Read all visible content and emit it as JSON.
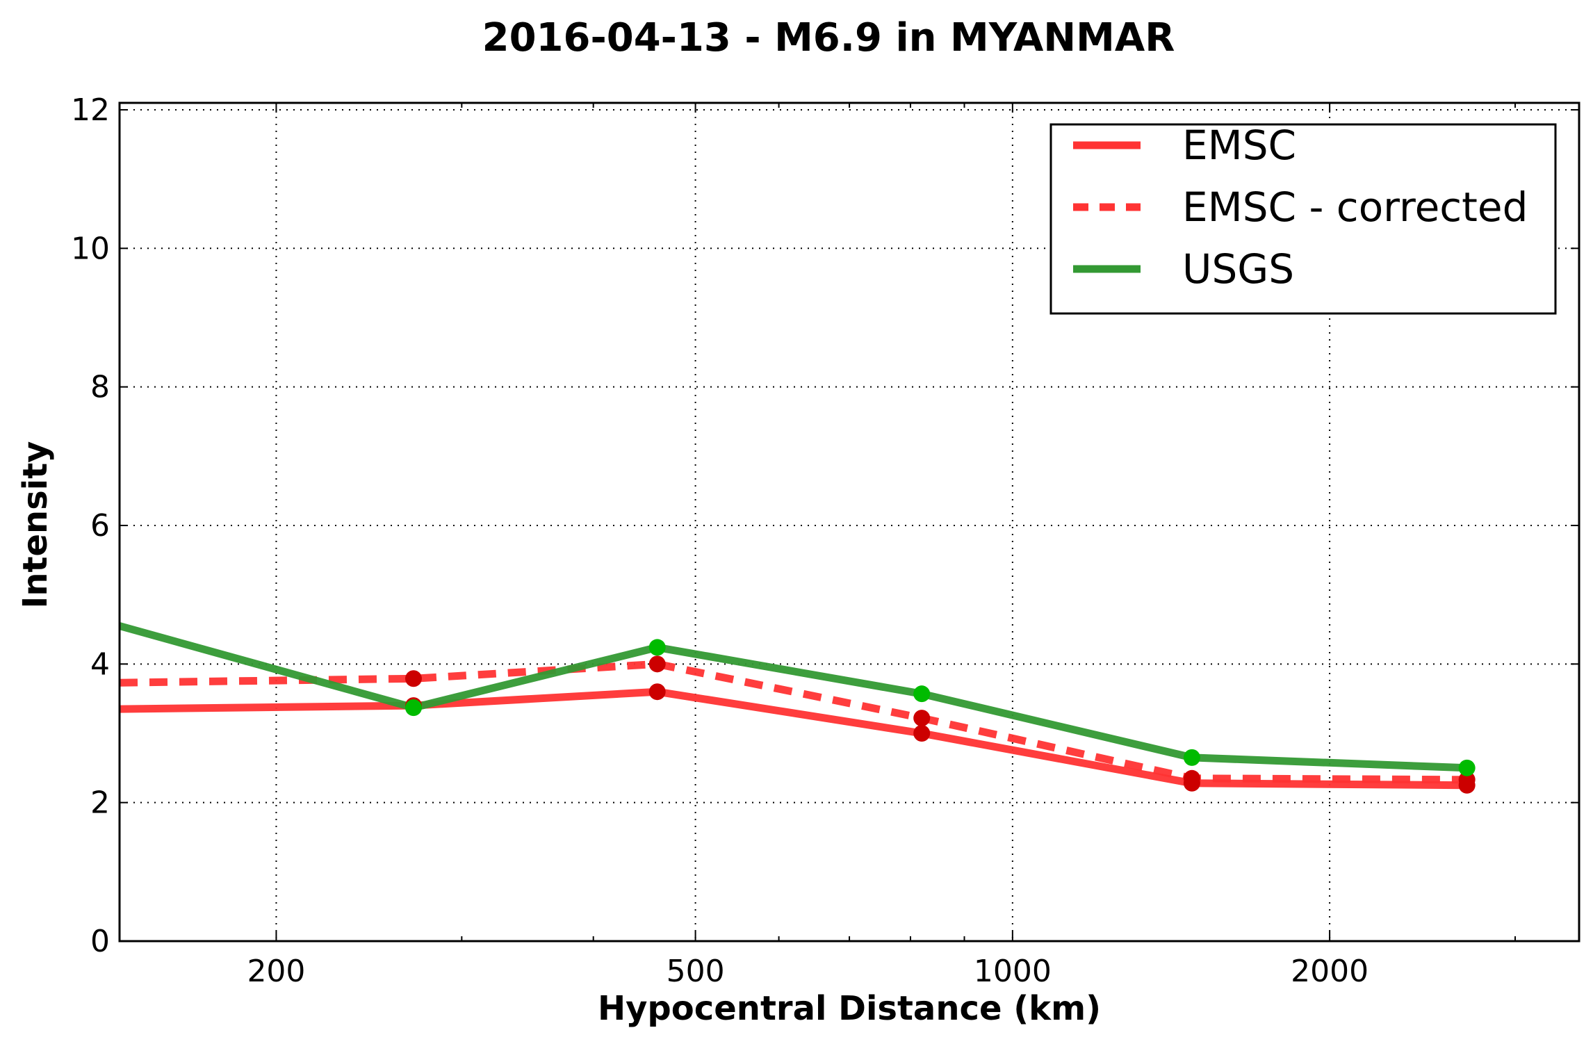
{
  "chart_data": {
    "type": "line",
    "title": "2016-04-13 - M6.9 in MYANMAR",
    "xlabel": "Hypocentral Distance (km)",
    "ylabel": "Intensity",
    "xscale": "log",
    "xlim": [
      142,
      3450
    ],
    "ylim": [
      0,
      12.1
    ],
    "xticks": [
      200,
      500,
      1000,
      2000
    ],
    "xtick_labels": [
      "200",
      "500",
      "1000",
      "2000"
    ],
    "yticks": [
      0,
      2,
      4,
      6,
      8,
      10,
      12
    ],
    "ytick_labels": [
      "0",
      "2",
      "4",
      "6",
      "8",
      "10",
      "12"
    ],
    "grid": true,
    "legend_position": "top-right",
    "series": [
      {
        "name": "EMSC",
        "color": "#ff3333",
        "style": "solid",
        "marker_color": "#cc0000",
        "x": [
          142,
          270,
          460,
          820,
          1480,
          2700
        ],
        "y": [
          3.35,
          3.4,
          3.6,
          3.0,
          2.28,
          2.25
        ],
        "marker_x": [
          270,
          460,
          820,
          1480,
          2700
        ],
        "marker_y": [
          3.4,
          3.6,
          3.0,
          2.28,
          2.25
        ]
      },
      {
        "name": "EMSC - corrected",
        "color": "#ff3333",
        "style": "dashed",
        "marker_color": "#cc0000",
        "x": [
          142,
          270,
          460,
          820,
          1480,
          2700
        ],
        "y": [
          3.73,
          3.79,
          4.0,
          3.22,
          2.35,
          2.33
        ],
        "marker_x": [
          270,
          460,
          820,
          1480,
          2700
        ],
        "marker_y": [
          3.79,
          4.0,
          3.22,
          2.35,
          2.33
        ]
      },
      {
        "name": "USGS",
        "color": "#339933",
        "style": "solid",
        "marker_color": "#00bb00",
        "x": [
          142,
          270,
          460,
          820,
          1480,
          2700
        ],
        "y": [
          4.55,
          3.37,
          4.24,
          3.57,
          2.65,
          2.5
        ],
        "marker_x": [
          270,
          460,
          820,
          1480,
          2700
        ],
        "marker_y": [
          3.37,
          4.24,
          3.57,
          2.65,
          2.5
        ]
      }
    ]
  }
}
